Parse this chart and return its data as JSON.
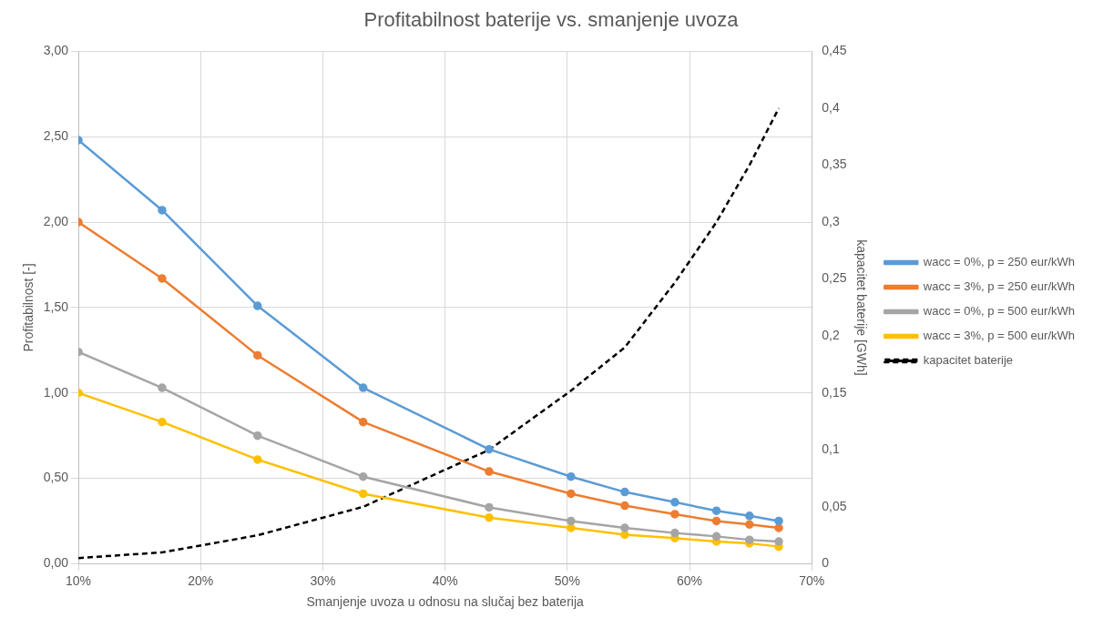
{
  "chart_data": {
    "type": "line",
    "title": "Profitabilnost baterije vs. smanjenje uvoza",
    "xlabel": "Smanjenje uvoza u odnosu na slučaj bez baterija",
    "ylabel": "Profitabilnost [-]",
    "y2label": "kapacitet baterije [GWh]",
    "x": [
      10,
      16.85,
      24.66,
      33.3,
      43.6,
      50.3,
      54.7,
      58.8,
      62.2,
      64.9,
      67.3
    ],
    "series": [
      {
        "name": "wacc = 0%, p = 250 eur/kWh",
        "color": "#5b9bd5",
        "values": [
          2.48,
          2.07,
          1.51,
          1.03,
          0.67,
          0.51,
          0.42,
          0.36,
          0.31,
          0.28,
          0.25
        ]
      },
      {
        "name": "wacc = 3%, p = 250 eur/kWh",
        "color": "#ed7d31",
        "values": [
          2.0,
          1.67,
          1.22,
          0.83,
          0.54,
          0.41,
          0.34,
          0.29,
          0.25,
          0.23,
          0.21
        ]
      },
      {
        "name": "wacc = 0%, p = 500 eur/kWh",
        "color": "#a5a5a5",
        "values": [
          1.24,
          1.03,
          0.75,
          0.51,
          0.33,
          0.25,
          0.21,
          0.18,
          0.16,
          0.14,
          0.13
        ]
      },
      {
        "name": "wacc = 3%, p = 500 eur/kWh",
        "color": "#ffc000",
        "values": [
          1.0,
          0.83,
          0.61,
          0.41,
          0.27,
          0.21,
          0.17,
          0.15,
          0.13,
          0.12,
          0.1
        ]
      },
      {
        "name": "kapacitet baterije",
        "color": "#000000",
        "axis": "y2",
        "marker": "none",
        "line_style": "dashed",
        "values": [
          0.005,
          0.01,
          0.025,
          0.05,
          0.1,
          0.152,
          0.19,
          0.247,
          0.3,
          0.35,
          0.4
        ]
      }
    ],
    "xlim": [
      10,
      70
    ],
    "xticks": [
      {
        "value": 10,
        "label": "10%"
      },
      {
        "value": 20,
        "label": "20%"
      },
      {
        "value": 30,
        "label": "30%"
      },
      {
        "value": 40,
        "label": "40%"
      },
      {
        "value": 50,
        "label": "50%"
      },
      {
        "value": 60,
        "label": "60%"
      },
      {
        "value": 70,
        "label": "70%"
      }
    ],
    "ylim": [
      0,
      3
    ],
    "yticks": [
      {
        "value": 0,
        "label": "0,00"
      },
      {
        "value": 0.5,
        "label": "0,50"
      },
      {
        "value": 1,
        "label": "1,00"
      },
      {
        "value": 1.5,
        "label": "1,50"
      },
      {
        "value": 2,
        "label": "2,00"
      },
      {
        "value": 2.5,
        "label": "2,50"
      },
      {
        "value": 3,
        "label": "3,00"
      }
    ],
    "y2lim": [
      0,
      0.45
    ],
    "y2ticks": [
      0,
      {
        "value": 0.05,
        "label": "0,05"
      },
      {
        "value": 0.1,
        "label": "0,1"
      },
      {
        "value": 0.15,
        "label": "0,15"
      },
      {
        "value": 0.2,
        "label": "0,2"
      },
      {
        "value": 0.25,
        "label": "0,25"
      },
      {
        "value": 0.3,
        "label": "0,3"
      },
      {
        "value": 0.35,
        "label": "0,35"
      },
      {
        "value": 0.4,
        "label": "0,4"
      },
      {
        "value": 0.45,
        "label": "0,45"
      }
    ],
    "grid": true,
    "legend": "right",
    "marker": "circle",
    "line_style": "solid"
  }
}
